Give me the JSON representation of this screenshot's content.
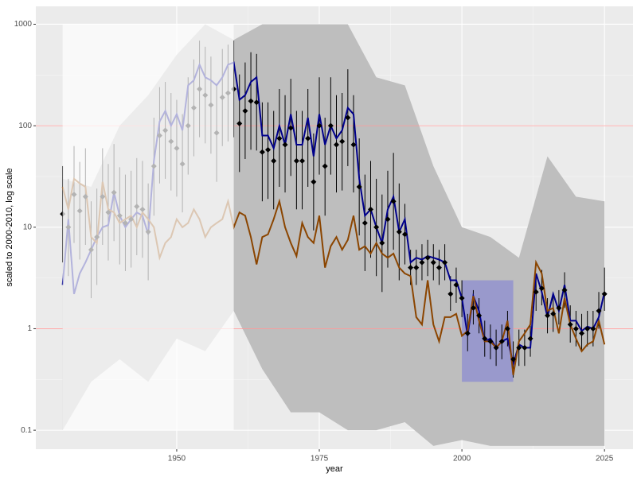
{
  "chart_data": {
    "type": "line",
    "x_label": "year",
    "y_label": "scaled to 2000-2010, log scale",
    "log_y": true,
    "grid": true,
    "xlim": [
      1925.3,
      2030
    ],
    "ylim": [
      0.065,
      1500
    ],
    "xticks": [
      1950,
      1975,
      2000,
      2025
    ],
    "yticks": [
      0.1,
      1,
      10,
      100,
      1000
    ],
    "x": [
      1930,
      1931,
      1932,
      1933,
      1934,
      1935,
      1936,
      1937,
      1938,
      1939,
      1940,
      1941,
      1942,
      1943,
      1944,
      1945,
      1946,
      1947,
      1948,
      1949,
      1950,
      1951,
      1952,
      1953,
      1954,
      1955,
      1956,
      1957,
      1958,
      1959,
      1960,
      1961,
      1962,
      1963,
      1964,
      1965,
      1966,
      1967,
      1968,
      1969,
      1970,
      1971,
      1972,
      1973,
      1974,
      1975,
      1976,
      1977,
      1978,
      1979,
      1980,
      1981,
      1982,
      1983,
      1984,
      1985,
      1986,
      1987,
      1988,
      1989,
      1990,
      1991,
      1992,
      1993,
      1994,
      1995,
      1996,
      1997,
      1998,
      1999,
      2000,
      2001,
      2002,
      2003,
      2004,
      2005,
      2006,
      2007,
      2008,
      2009,
      2010,
      2011,
      2012,
      2013,
      2014,
      2015,
      2016,
      2017,
      2018,
      2019,
      2020,
      2021,
      2022,
      2023,
      2024,
      2025
    ],
    "ribbon": {
      "color": "#bebebe",
      "x": [
        1930,
        1935,
        1940,
        1945,
        1950,
        1955,
        1960,
        1965,
        1970,
        1975,
        1980,
        1985,
        1990,
        1995,
        2000,
        2005,
        2010,
        2015,
        2020,
        2025
      ],
      "upper": [
        30,
        25,
        100,
        200,
        500,
        1000,
        700,
        1000,
        1000,
        1000,
        1000,
        300,
        250,
        40,
        10,
        8,
        5,
        50,
        20,
        18
      ],
      "lower": [
        0.1,
        0.3,
        0.5,
        0.3,
        0.8,
        0.6,
        1.5,
        0.4,
        0.15,
        0.15,
        0.1,
        0.1,
        0.12,
        0.07,
        0.08,
        0.07,
        0.07,
        0.07,
        0.07,
        0.07
      ]
    },
    "hlines": [
      1,
      100
    ],
    "hline_color": "#ff9999",
    "highlight": {
      "xlim": [
        2000,
        2009
      ],
      "ylim": [
        0.3,
        3
      ],
      "color": "#9999cc"
    },
    "faded_before": 1960,
    "series": [
      {
        "color": "#00008b",
        "values": [
          2.7,
          12,
          2.2,
          3.5,
          4.5,
          6,
          8,
          10,
          10.5,
          22,
          13,
          10,
          12,
          14,
          13,
          8.5,
          45,
          110,
          140,
          100,
          130,
          90,
          250,
          280,
          400,
          300,
          280,
          250,
          300,
          400,
          420,
          180,
          200,
          270,
          300,
          80,
          80,
          60,
          100,
          65,
          130,
          65,
          65,
          120,
          50,
          130,
          65,
          100,
          75,
          90,
          150,
          130,
          30,
          13,
          15,
          10,
          7,
          15,
          20,
          9,
          12,
          4.5,
          5,
          4.8,
          5.2,
          5,
          4.8,
          4.5,
          3,
          3,
          2,
          0.85,
          2.1,
          1.5,
          0.75,
          0.8,
          0.65,
          0.75,
          0.8,
          0.45,
          0.7,
          0.65,
          0.65,
          3.5,
          2.3,
          1.3,
          2.2,
          1.5,
          2.7,
          1.2,
          1.2,
          0.95,
          1.05,
          1.0,
          1.3,
          2.3
        ]
      },
      {
        "color": "#8b4500",
        "values": [
          25,
          15,
          30,
          27,
          25,
          8,
          7,
          28,
          15,
          14,
          11,
          12,
          13,
          10,
          14,
          12,
          10,
          5,
          7,
          8,
          12,
          10,
          11,
          15,
          12,
          8,
          10,
          11,
          12,
          18,
          10,
          14,
          13,
          8,
          4.3,
          8,
          8.5,
          12,
          18,
          10,
          7,
          5.2,
          11,
          8,
          7,
          13,
          4,
          6.5,
          8,
          6,
          7.5,
          13,
          6,
          6.5,
          5.5,
          7,
          5.5,
          5,
          5.5,
          4,
          3.5,
          3.3,
          1.3,
          1.1,
          3,
          1.1,
          0.75,
          1.3,
          1.3,
          1.4,
          0.85,
          0.95,
          2.1,
          1.2,
          0.75,
          0.75,
          0.65,
          0.75,
          1.2,
          0.35,
          0.75,
          0.9,
          1.1,
          4.5,
          3.5,
          1.5,
          1.6,
          0.9,
          2.0,
          1.1,
          0.8,
          0.6,
          0.7,
          0.75,
          1.2,
          0.7
        ]
      }
    ],
    "points": {
      "color": "#000000",
      "values": [
        13.5,
        10,
        21,
        14.5,
        20,
        6,
        8,
        20,
        14,
        22,
        13,
        11,
        12,
        16,
        15,
        9,
        40,
        80,
        90,
        70,
        60,
        42,
        100,
        150,
        230,
        200,
        160,
        85,
        190,
        210,
        230,
        105,
        140,
        175,
        170,
        55,
        58,
        45,
        75,
        65,
        95,
        45,
        45,
        75,
        28,
        100,
        40,
        100,
        65,
        70,
        120,
        65,
        25,
        11,
        15,
        10,
        7,
        12,
        18,
        9,
        8.5,
        4,
        4,
        4.5,
        5,
        4.5,
        4,
        4.5,
        2.2,
        2.7,
        2,
        0.9,
        1.6,
        1.35,
        0.8,
        0.75,
        0.65,
        0.75,
        1.0,
        0.5,
        0.65,
        0.65,
        0.8,
        2.3,
        2.5,
        1.35,
        1.4,
        1.6,
        2.4,
        1.1,
        1.0,
        0.9,
        1.0,
        1.0,
        1.5,
        2.2
      ],
      "low": [
        4.5,
        3.3,
        7,
        4.8,
        6.7,
        2,
        2.7,
        6.7,
        4.7,
        7.3,
        4.3,
        3.7,
        4,
        5.3,
        5,
        3,
        13,
        27,
        30,
        23,
        20,
        14,
        33,
        50,
        77,
        67,
        53,
        28,
        63,
        70,
        77,
        35,
        47,
        58,
        57,
        18,
        19,
        15,
        25,
        22,
        32,
        15,
        15,
        25,
        9.3,
        33,
        13,
        33,
        22,
        23,
        40,
        22,
        8.3,
        3.7,
        5,
        3.3,
        2.3,
        4,
        6,
        3,
        4.3,
        2.7,
        2.7,
        3,
        3.3,
        3,
        2.7,
        3,
        1.5,
        1.8,
        1.3,
        0.6,
        1.1,
        0.9,
        0.53,
        0.5,
        0.43,
        0.5,
        0.67,
        0.33,
        0.43,
        0.43,
        0.53,
        1.5,
        1.7,
        0.9,
        0.93,
        1.1,
        1.6,
        0.73,
        0.67,
        0.6,
        0.67,
        0.67,
        1,
        1.5
      ],
      "high": [
        40,
        30,
        63,
        44,
        60,
        18,
        24,
        60,
        42,
        66,
        39,
        33,
        36,
        48,
        45,
        27,
        120,
        240,
        270,
        210,
        180,
        130,
        300,
        450,
        690,
        600,
        480,
        260,
        570,
        630,
        690,
        320,
        420,
        530,
        510,
        170,
        170,
        140,
        230,
        200,
        290,
        140,
        140,
        230,
        84,
        300,
        120,
        300,
        200,
        210,
        360,
        200,
        75,
        33,
        45,
        30,
        21,
        36,
        54,
        27,
        17,
        6,
        6,
        6.8,
        7.5,
        6.8,
        6,
        6.8,
        3.3,
        4,
        3,
        1.4,
        2.4,
        2,
        1.2,
        1.1,
        0.98,
        1.1,
        1.5,
        0.75,
        0.98,
        0.98,
        1.2,
        3.5,
        3.8,
        2,
        2.1,
        2.4,
        3.6,
        1.7,
        1.5,
        1.4,
        1.5,
        1.5,
        2.3,
        4
      ]
    }
  }
}
